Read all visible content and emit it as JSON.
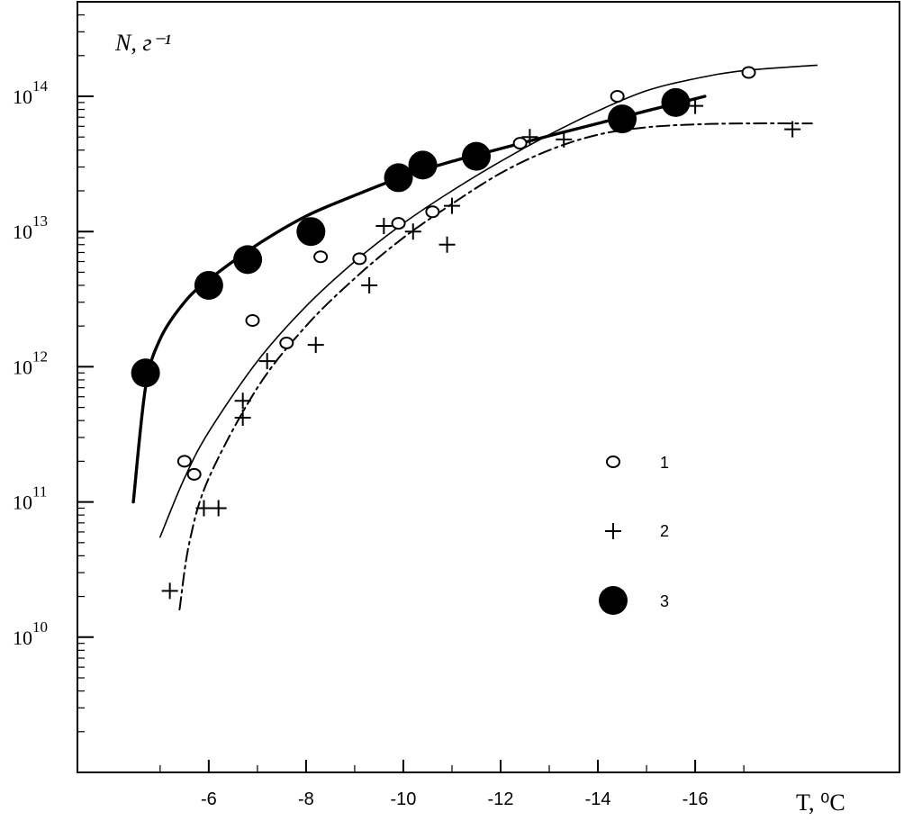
{
  "chart_data": {
    "type": "scatter",
    "title": "",
    "ylabel": "N, г⁻¹",
    "xlabel": "T, ⁰C",
    "yscale": "log",
    "ylim": [
      1000000000.0,
      500000000000000.0
    ],
    "xlim": [
      -3.3,
      -20.2
    ],
    "x_ticks": [
      -6,
      -8,
      -10,
      -12,
      -14,
      -16
    ],
    "y_ticks": [
      {
        "value": 10000000000.0,
        "base": "10",
        "exp": "10"
      },
      {
        "value": 100000000000.0,
        "base": "10",
        "exp": "11"
      },
      {
        "value": 1000000000000.0,
        "base": "10",
        "exp": "12"
      },
      {
        "value": 10000000000000.0,
        "base": "10",
        "exp": "13"
      },
      {
        "value": 100000000000000.0,
        "base": "10",
        "exp": "14"
      }
    ],
    "grid": false,
    "legend_position": "lower-right",
    "series": [
      {
        "name": "1",
        "marker": "open-circle",
        "points": [
          [
            -5.5,
            200000000000.0
          ],
          [
            -5.7,
            160000000000.0
          ],
          [
            -6.9,
            2200000000000.0
          ],
          [
            -7.6,
            1500000000000.0
          ],
          [
            -8.3,
            6500000000000.0
          ],
          [
            -9.1,
            6300000000000.0
          ],
          [
            -9.9,
            11500000000000.0
          ],
          [
            -10.6,
            14000000000000.0
          ],
          [
            -12.4,
            45000000000000.0
          ],
          [
            -14.4,
            100000000000000.0
          ],
          [
            -17.1,
            150000000000000.0
          ]
        ],
        "curve": [
          [
            -5.0,
            55000000000.0
          ],
          [
            -5.5,
            150000000000.0
          ],
          [
            -6.0,
            330000000000.0
          ],
          [
            -7.0,
            1100000000000.0
          ],
          [
            -8.0,
            2800000000000.0
          ],
          [
            -9.0,
            6000000000000.0
          ],
          [
            -10.0,
            11500000000000.0
          ],
          [
            -11.0,
            20000000000000.0
          ],
          [
            -12.0,
            33000000000000.0
          ],
          [
            -13.0,
            52000000000000.0
          ],
          [
            -14.0,
            78000000000000.0
          ],
          [
            -15.0,
            110000000000000.0
          ],
          [
            -16.0,
            135000000000000.0
          ],
          [
            -17.0,
            155000000000000.0
          ],
          [
            -18.5,
            170000000000000.0
          ]
        ]
      },
      {
        "name": "2",
        "marker": "plus",
        "points": [
          [
            -5.2,
            22000000000.0
          ],
          [
            -5.9,
            90000000000.0
          ],
          [
            -6.2,
            90000000000.0
          ],
          [
            -6.7,
            420000000000.0
          ],
          [
            -6.7,
            560000000000.0
          ],
          [
            -7.2,
            1100000000000.0
          ],
          [
            -8.2,
            1450000000000.0
          ],
          [
            -9.3,
            4000000000000.0
          ],
          [
            -9.6,
            11000000000000.0
          ],
          [
            -10.2,
            10000000000000.0
          ],
          [
            -10.9,
            8000000000000.0
          ],
          [
            -11.0,
            15500000000000.0
          ],
          [
            -12.6,
            50000000000000.0
          ],
          [
            -13.3,
            48000000000000.0
          ],
          [
            -16.0,
            85000000000000.0
          ],
          [
            -18.0,
            57000000000000.0
          ]
        ],
        "curve": [
          [
            -5.4,
            16000000000.0
          ],
          [
            -5.6,
            50000000000.0
          ],
          [
            -6.0,
            150000000000.0
          ],
          [
            -7.0,
            700000000000.0
          ],
          [
            -8.0,
            2000000000000.0
          ],
          [
            -9.0,
            4500000000000.0
          ],
          [
            -10.0,
            9000000000000.0
          ],
          [
            -11.0,
            16000000000000.0
          ],
          [
            -12.0,
            27000000000000.0
          ],
          [
            -13.0,
            40000000000000.0
          ],
          [
            -14.0,
            52000000000000.0
          ],
          [
            -15.0,
            59000000000000.0
          ],
          [
            -16.0,
            62000000000000.0
          ],
          [
            -17.0,
            63000000000000.0
          ],
          [
            -18.4,
            63000000000000.0
          ]
        ]
      },
      {
        "name": "3",
        "marker": "filled-circle",
        "points": [
          [
            -4.7,
            900000000000.0
          ],
          [
            -6.0,
            4000000000000.0
          ],
          [
            -6.8,
            6200000000000.0
          ],
          [
            -8.1,
            10000000000000.0
          ],
          [
            -9.9,
            25000000000000.0
          ],
          [
            -10.4,
            31000000000000.0
          ],
          [
            -11.5,
            36000000000000.0
          ],
          [
            -14.5,
            68000000000000.0
          ],
          [
            -15.6,
            90000000000000.0
          ]
        ],
        "curve": [
          [
            -4.45,
            100000000000.0
          ],
          [
            -4.7,
            700000000000.0
          ],
          [
            -5.0,
            1600000000000.0
          ],
          [
            -5.5,
            3000000000000.0
          ],
          [
            -6.0,
            4400000000000.0
          ],
          [
            -7.0,
            8000000000000.0
          ],
          [
            -8.0,
            13000000000000.0
          ],
          [
            -9.0,
            18500000000000.0
          ],
          [
            -10.0,
            25500000000000.0
          ],
          [
            -11.0,
            33000000000000.0
          ],
          [
            -12.0,
            41000000000000.0
          ],
          [
            -13.0,
            51000000000000.0
          ],
          [
            -14.0,
            63000000000000.0
          ],
          [
            -15.0,
            78000000000000.0
          ],
          [
            -16.2,
            100000000000000.0
          ]
        ]
      }
    ]
  }
}
